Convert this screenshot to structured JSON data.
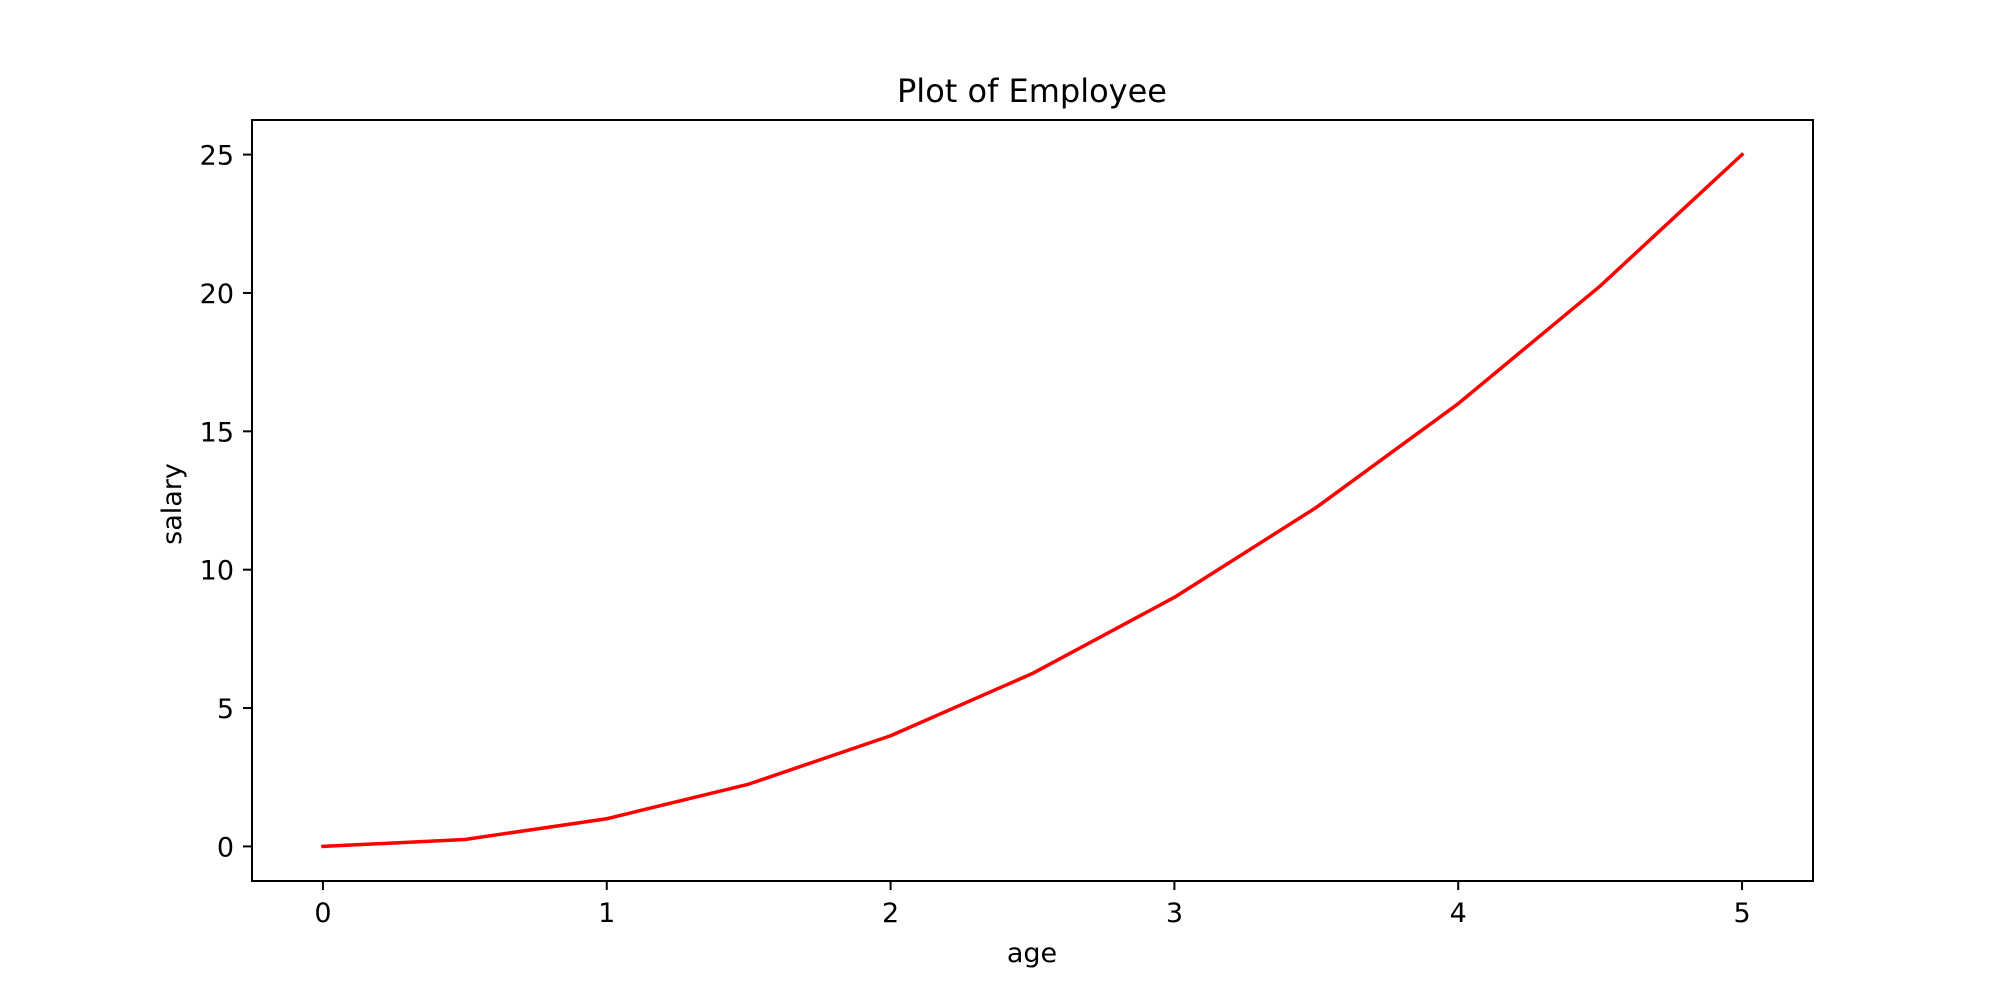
{
  "chart_data": {
    "type": "line",
    "title": "Plot of Employee",
    "xlabel": "age",
    "ylabel": "salary",
    "xlim": [
      -0.25,
      5.25
    ],
    "ylim": [
      -1.25,
      26.25
    ],
    "xticks": [
      0,
      1,
      2,
      3,
      4,
      5
    ],
    "xtick_labels": [
      "0",
      "1",
      "2",
      "3",
      "4",
      "5"
    ],
    "yticks": [
      0,
      5,
      10,
      15,
      20,
      25
    ],
    "ytick_labels": [
      "0",
      "5",
      "10",
      "15",
      "20",
      "25"
    ],
    "grid": false,
    "series": [
      {
        "color": "#ff0000",
        "x": [
          0,
          0.5,
          1,
          1.5,
          2,
          2.5,
          3,
          3.5,
          4,
          4.5,
          5
        ],
        "y": [
          0,
          0.25,
          1,
          2.25,
          4,
          6.25,
          9,
          12.25,
          16,
          20.25,
          25
        ]
      }
    ]
  }
}
